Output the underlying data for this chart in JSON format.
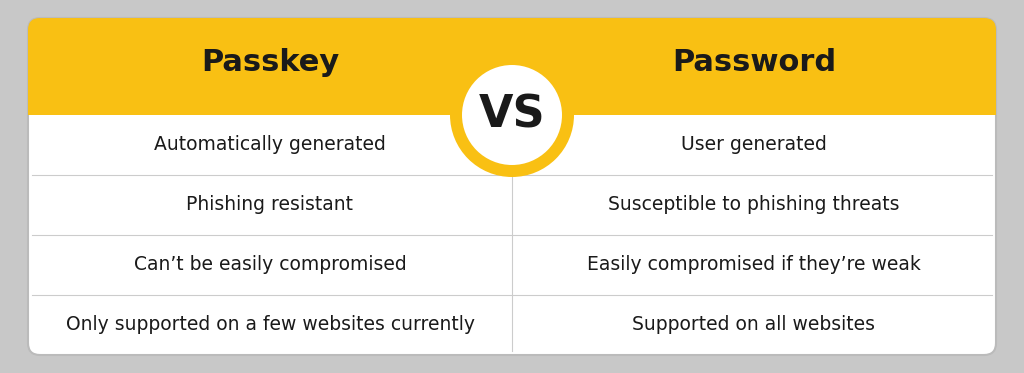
{
  "title_left": "Passkey",
  "title_right": "Password",
  "vs_text": "VS",
  "header_color": "#F9C013",
  "header_text_color": "#1a1a1a",
  "body_bg_color": "#ffffff",
  "row_line_color": "#cccccc",
  "col_line_color": "#cccccc",
  "text_color": "#1a1a1a",
  "outer_bg_color": "#c8c8c8",
  "vs_circle_bg": "#ffffff",
  "vs_ring_color": "#F9C013",
  "rows_left": [
    "Automatically generated",
    "Phishing resistant",
    "Can’t be easily compromised",
    "Only supported on a few websites currently"
  ],
  "rows_right": [
    "User generated",
    "Susceptible to phishing threats",
    "Easily compromised if they’re weak",
    "Supported on all websites"
  ],
  "header_fontsize": 22,
  "body_fontsize": 13.5,
  "vs_fontsize": 32,
  "fig_width": 10.24,
  "fig_height": 3.73
}
